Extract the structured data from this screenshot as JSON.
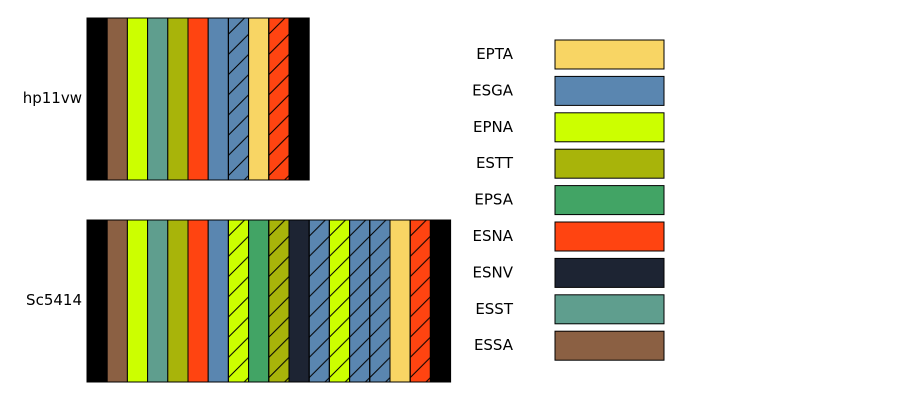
{
  "rows": [
    {
      "label": "hp11vw",
      "blocks": [
        {
          "color": "#000000",
          "hatch": false
        },
        {
          "color": "#8B6043",
          "hatch": false
        },
        {
          "color": "#CCFF00",
          "hatch": false
        },
        {
          "color": "#5F9E8E",
          "hatch": false
        },
        {
          "color": "#A8B40A",
          "hatch": false
        },
        {
          "color": "#FF4411",
          "hatch": false
        },
        {
          "color": "#5A86B0",
          "hatch": false
        },
        {
          "color": "#5A86B0",
          "hatch": true
        },
        {
          "color": "#F8D564",
          "hatch": false
        },
        {
          "color": "#FF4411",
          "hatch": true
        },
        {
          "color": "#000000",
          "hatch": false
        }
      ]
    },
    {
      "label": "Sc5414",
      "blocks": [
        {
          "color": "#000000",
          "hatch": false
        },
        {
          "color": "#8B6043",
          "hatch": false
        },
        {
          "color": "#CCFF00",
          "hatch": false
        },
        {
          "color": "#5F9E8E",
          "hatch": false
        },
        {
          "color": "#A8B40A",
          "hatch": false
        },
        {
          "color": "#FF4411",
          "hatch": false
        },
        {
          "color": "#5A86B0",
          "hatch": false
        },
        {
          "color": "#CCFF00",
          "hatch": true
        },
        {
          "color": "#42A465",
          "hatch": false
        },
        {
          "color": "#A8B40A",
          "hatch": true
        },
        {
          "color": "#1D2433",
          "hatch": false
        },
        {
          "color": "#5A86B0",
          "hatch": true
        },
        {
          "color": "#CCFF00",
          "hatch": true
        },
        {
          "color": "#5A86B0",
          "hatch": true
        },
        {
          "color": "#5A86B0",
          "hatch": true
        },
        {
          "color": "#F8D564",
          "hatch": false
        },
        {
          "color": "#FF4411",
          "hatch": true
        },
        {
          "color": "#000000",
          "hatch": false
        }
      ]
    }
  ],
  "legend": [
    {
      "label": "EPTA",
      "color": "#F8D564"
    },
    {
      "label": "ESGA",
      "color": "#5A86B0"
    },
    {
      "label": "EPNA",
      "color": "#CCFF00"
    },
    {
      "label": "ESTT",
      "color": "#A8B40A"
    },
    {
      "label": "EPSA",
      "color": "#42A465"
    },
    {
      "label": "ESNA",
      "color": "#FF4411"
    },
    {
      "label": "ESNV",
      "color": "#1D2433"
    },
    {
      "label": "ESST",
      "color": "#5F9E8E"
    },
    {
      "label": "ESSA",
      "color": "#8B6043"
    }
  ]
}
